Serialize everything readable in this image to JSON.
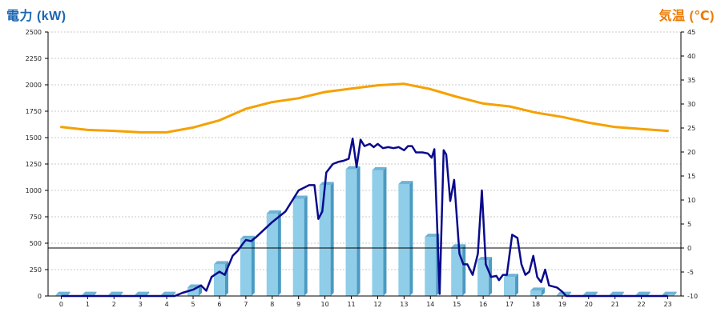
{
  "chart_data": {
    "type": "bar",
    "left_axis_title": "電力 (kW)",
    "right_axis_title": "気温 (℃)",
    "colors": {
      "left_title": "#1a66b3",
      "right_title": "#ee7a00",
      "bar_front": "#8fcde8",
      "bar_side": "#4a9ac2",
      "bar_top": "#6fb3d6",
      "power_line": "#0a0a8c",
      "temp_line": "#f5a100",
      "grid": "#c8c8c8"
    },
    "left_axis": {
      "min": 0,
      "max": 2500,
      "ticks": [
        0,
        250,
        500,
        750,
        1000,
        1250,
        1500,
        1750,
        2000,
        2250,
        2500
      ]
    },
    "right_axis": {
      "min": -10,
      "max": 45,
      "ticks": [
        -10,
        -5,
        0,
        5,
        10,
        15,
        20,
        25,
        30,
        35,
        40,
        45
      ]
    },
    "hours": [
      0,
      1,
      2,
      3,
      4,
      5,
      6,
      7,
      8,
      9,
      10,
      11,
      12,
      13,
      14,
      15,
      16,
      17,
      18,
      19,
      20,
      21,
      22,
      23
    ],
    "bar_values": [
      10,
      10,
      10,
      10,
      10,
      80,
      300,
      540,
      780,
      920,
      1050,
      1200,
      1190,
      1060,
      560,
      460,
      340,
      180,
      50,
      10,
      10,
      10,
      10,
      10
    ],
    "temperature_values": [
      25.2,
      24.6,
      24.4,
      24.1,
      24.1,
      25.1,
      26.6,
      29.0,
      30.4,
      31.2,
      32.5,
      33.2,
      33.9,
      34.2,
      33.1,
      31.5,
      30.1,
      29.5,
      28.2,
      27.3,
      26.1,
      25.2,
      24.8,
      24.4
    ],
    "power_line": [
      [
        0,
        0
      ],
      [
        1,
        0
      ],
      [
        2,
        0
      ],
      [
        3,
        0
      ],
      [
        4,
        0
      ],
      [
        4.3,
        0
      ],
      [
        4.6,
        30
      ],
      [
        5,
        60
      ],
      [
        5.3,
        100
      ],
      [
        5.5,
        50
      ],
      [
        5.7,
        180
      ],
      [
        6,
        230
      ],
      [
        6.2,
        200
      ],
      [
        6.5,
        380
      ],
      [
        6.7,
        430
      ],
      [
        6.9,
        500
      ],
      [
        7,
        530
      ],
      [
        7.2,
        520
      ],
      [
        7.4,
        560
      ],
      [
        8,
        700
      ],
      [
        8.5,
        800
      ],
      [
        9,
        1000
      ],
      [
        9.4,
        1050
      ],
      [
        9.6,
        1050
      ],
      [
        9.75,
        730
      ],
      [
        9.9,
        800
      ],
      [
        10.05,
        1170
      ],
      [
        10.3,
        1250
      ],
      [
        10.5,
        1270
      ],
      [
        10.7,
        1280
      ],
      [
        10.9,
        1300
      ],
      [
        11.05,
        1490
      ],
      [
        11.2,
        1220
      ],
      [
        11.35,
        1480
      ],
      [
        11.5,
        1420
      ],
      [
        11.7,
        1440
      ],
      [
        11.85,
        1410
      ],
      [
        12.0,
        1440
      ],
      [
        12.2,
        1400
      ],
      [
        12.4,
        1410
      ],
      [
        12.6,
        1400
      ],
      [
        12.8,
        1410
      ],
      [
        13.0,
        1380
      ],
      [
        13.15,
        1420
      ],
      [
        13.3,
        1420
      ],
      [
        13.45,
        1360
      ],
      [
        13.7,
        1360
      ],
      [
        13.9,
        1350
      ],
      [
        14.05,
        1310
      ],
      [
        14.15,
        1390
      ],
      [
        14.35,
        20
      ],
      [
        14.5,
        1380
      ],
      [
        14.6,
        1340
      ],
      [
        14.75,
        900
      ],
      [
        14.9,
        1100
      ],
      [
        15.1,
        400
      ],
      [
        15.25,
        300
      ],
      [
        15.4,
        300
      ],
      [
        15.6,
        200
      ],
      [
        15.8,
        400
      ],
      [
        15.95,
        1000
      ],
      [
        16.1,
        300
      ],
      [
        16.3,
        180
      ],
      [
        16.5,
        190
      ],
      [
        16.6,
        150
      ],
      [
        16.75,
        200
      ],
      [
        16.9,
        200
      ],
      [
        17.1,
        580
      ],
      [
        17.3,
        550
      ],
      [
        17.45,
        300
      ],
      [
        17.6,
        200
      ],
      [
        17.75,
        230
      ],
      [
        17.9,
        380
      ],
      [
        18.05,
        180
      ],
      [
        18.2,
        130
      ],
      [
        18.35,
        250
      ],
      [
        18.5,
        100
      ],
      [
        18.8,
        80
      ],
      [
        19.0,
        40
      ],
      [
        19.15,
        0
      ],
      [
        20,
        0
      ],
      [
        21,
        0
      ],
      [
        22,
        0
      ],
      [
        23,
        0
      ]
    ]
  }
}
